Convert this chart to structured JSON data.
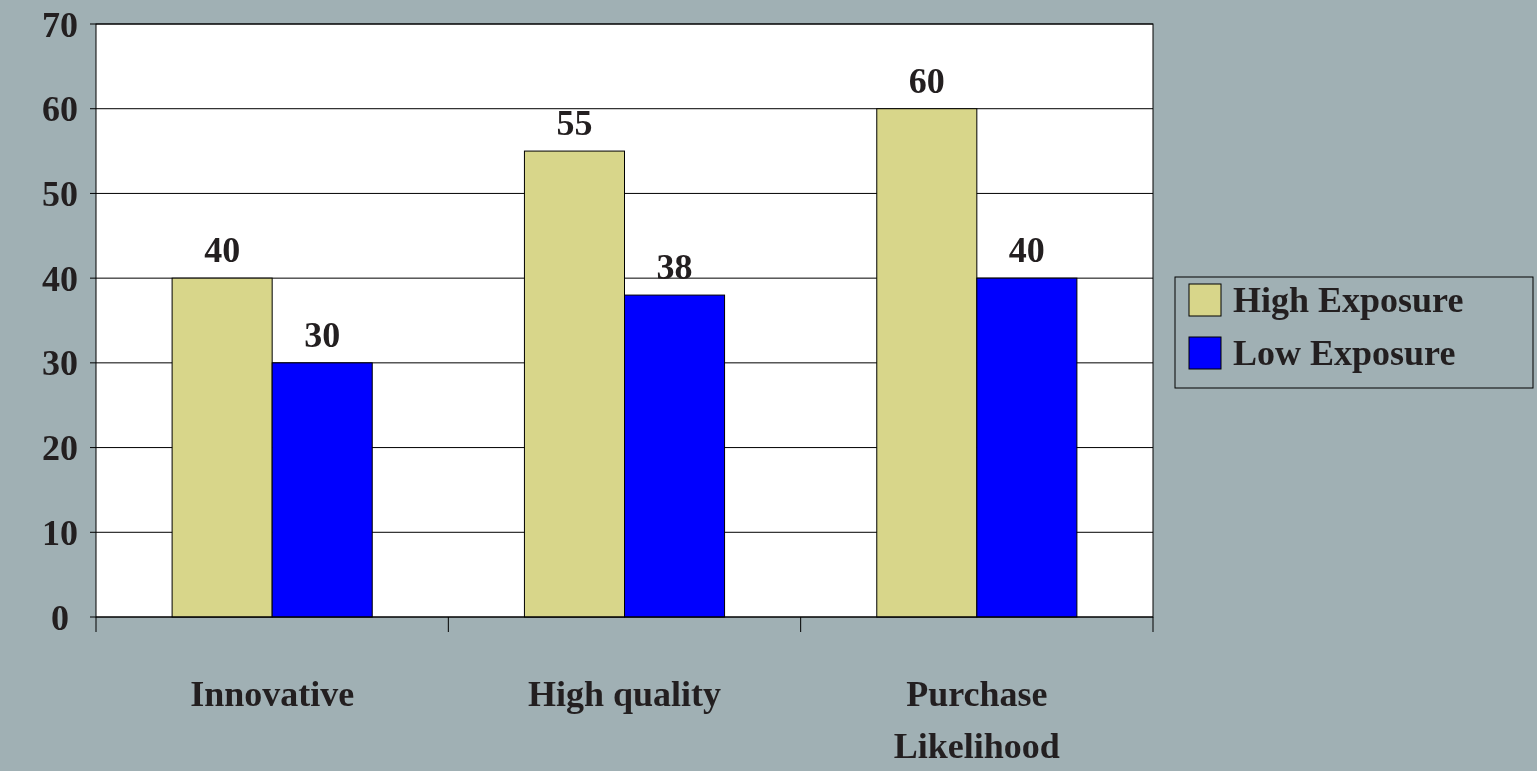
{
  "chart_data": {
    "type": "bar",
    "categories": [
      "Innovative",
      "High quality",
      "Purchase Likelihood"
    ],
    "series": [
      {
        "name": "High Exposure",
        "color": "#d8d68a",
        "values": [
          40,
          55,
          60
        ]
      },
      {
        "name": "Low Exposure",
        "color": "#0000ff",
        "values": [
          30,
          38,
          40
        ]
      }
    ],
    "ylim": [
      0,
      70
    ],
    "yticks": [
      0,
      10,
      20,
      30,
      40,
      50,
      60,
      70
    ],
    "grid": "y",
    "legend": "right",
    "data_labels": true
  }
}
